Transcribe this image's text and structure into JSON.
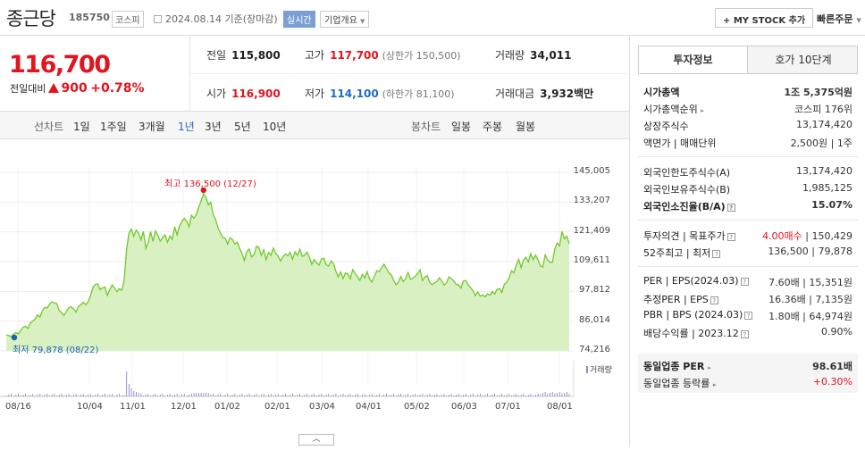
{
  "header": {
    "stock_name": "종근당",
    "stock_code": "185750",
    "market": "코스피",
    "date_text": "2024.08.14 기준(장마감)",
    "realtime": "실시간",
    "company_overview": "기업개요",
    "mystock": "+ MY STOCK 추가",
    "quick_order": "빠른주문"
  },
  "price": {
    "current": "116,700",
    "change_label": "전일대비",
    "change_amount": "900",
    "change_pct": "+0.78%"
  },
  "stats": {
    "prev_close_label": "전일",
    "prev_close": "115,800",
    "high_label": "고가",
    "high": "117,700",
    "upper_limit": "(상한가 150,500)",
    "volume_label": "거래량",
    "volume": "34,011",
    "open_label": "시가",
    "open": "116,900",
    "low_label": "저가",
    "low": "114,100",
    "lower_limit": "(하한가 81,100)",
    "amount_label": "거래대금",
    "amount": "3,932",
    "amount_unit": "백만"
  },
  "periods": {
    "line_chart_label": "선차트",
    "line_periods": [
      "1일",
      "1주일",
      "3개월",
      "1년",
      "3년",
      "5년",
      "10년"
    ],
    "active": "1년",
    "candle_label": "봉차트",
    "candle_periods": [
      "일봉",
      "주봉",
      "월봉"
    ]
  },
  "chart_data": {
    "type": "area",
    "y_ticks": [
      "145,005",
      "133,207",
      "121,409",
      "109,611",
      "97,812",
      "86,014",
      "74,216"
    ],
    "ylim": [
      74216,
      145005
    ],
    "x_ticks": [
      "08/16",
      "10/04",
      "11/01",
      "12/01",
      "01/02",
      "02/01",
      "03/04",
      "04/01",
      "05/02",
      "06/03",
      "07/01",
      "08/01"
    ],
    "high_annotation": "최고 136,500 (12/27)",
    "low_annotation": "최저 79,878 (08/22)",
    "volume_label": "거래량",
    "line_color": "#72c82c",
    "fill_color": "#d9f1c2",
    "series": [
      {
        "values": [
          80500,
          80300,
          79878,
          80800,
          81500,
          80900,
          82200,
          83600,
          84000,
          83100,
          85300,
          86000,
          86800,
          88500,
          87600,
          90100,
          91500,
          91200,
          92800,
          93700,
          93200,
          93000,
          90200,
          89400,
          88300,
          89900,
          91300,
          91700,
          90800,
          89600,
          91800,
          92600,
          93500,
          92500,
          93600,
          96000,
          99300,
          100500,
          100800,
          98500,
          99200,
          99500,
          96200,
          98400,
          100400,
          99100,
          97700,
          98900,
          98200,
          102000,
          114300,
          120800,
          122500,
          119600,
          122100,
          120900,
          118200,
          121600,
          114800,
          117000,
          121500,
          117600,
          121800,
          120100,
          117700,
          119100,
          120200,
          117300,
          119800,
          118500,
          123400,
          120200,
          123700,
          125500,
          126800,
          125600,
          123400,
          128000,
          126800,
          128200,
          131200,
          133800,
          136500,
          135100,
          132100,
          133200,
          128300,
          126400,
          123100,
          120900,
          119200,
          118800,
          116600,
          119000,
          118400,
          116600,
          117300,
          114800,
          112900,
          110100,
          113600,
          114600,
          111500,
          112300,
          115700,
          115300,
          112100,
          114300,
          110400,
          113300,
          112100,
          115000,
          112800,
          111800,
          109800,
          111500,
          112700,
          111800,
          113300,
          110600,
          113500,
          112100,
          114600,
          111700,
          112200,
          113400,
          111400,
          108500,
          110400,
          109200,
          108200,
          110600,
          111000,
          108400,
          107800,
          109900,
          108800,
          105900,
          103500,
          105500,
          102900,
          105100,
          104800,
          102800,
          106400,
          104900,
          103600,
          102200,
          104600,
          103100,
          105600,
          102800,
          101500,
          103700,
          106000,
          105600,
          107200,
          108600,
          106900,
          105200,
          104400,
          102200,
          100400,
          101500,
          103700,
          101700,
          102800,
          105300,
          102600,
          103000,
          103800,
          104900,
          106400,
          102100,
          103500,
          104100,
          101400,
          100500,
          101100,
          101700,
          103200,
          102000,
          100300,
          101200,
          103600,
          102900,
          101900,
          100600,
          100400,
          99100,
          101900,
          102100,
          100400,
          99300,
          98100,
          96100,
          97600,
          95900,
          96400,
          95600,
          96800,
          96300,
          97800,
          96700,
          98600,
          99000,
          97400,
          100600,
          101400,
          103100,
          106000,
          105200,
          108300,
          110500,
          107200,
          110200,
          111300,
          109500,
          112800,
          110400,
          112200,
          110400,
          107900,
          107400,
          112300,
          110300,
          109300,
          109400,
          114600,
          117000,
          115800,
          121600,
          118600,
          119700,
          116700
        ]
      }
    ]
  },
  "invest_panel": {
    "tabs": [
      "투자정보",
      "호가 10단계"
    ],
    "rows1": [
      {
        "k": "시가총액",
        "v": "1조 5,375억원"
      },
      {
        "k": "시가총액순위",
        "v": "코스피 176위"
      },
      {
        "k": "상장주식수",
        "v": "13,174,420"
      },
      {
        "k": "액면가 | 매매단위",
        "v": "2,500원 | 1주"
      }
    ],
    "rows2": [
      {
        "k": "외국인한도주식수(A)",
        "v": "13,174,420"
      },
      {
        "k": "외국인보유주식수(B)",
        "v": "1,985,125"
      },
      {
        "k": "외국인소진율(B/A)",
        "v": "15.07%"
      }
    ],
    "rows3": [
      {
        "k": "투자의견 | 목표주가",
        "v_red": "4.00매수",
        "v": "150,429"
      },
      {
        "k": "52주최고 | 최저",
        "v": "136,500 | 79,878"
      }
    ],
    "rows4": [
      {
        "k": "PER | EPS(2024.03)",
        "v": "7.60배 | 15,351원"
      },
      {
        "k": "추정PER | EPS",
        "v": "16.36배 | 7,135원"
      },
      {
        "k": "PBR | BPS (2024.03)",
        "v": "1.80배 | 64,974원"
      },
      {
        "k": "배당수익률 | 2023.12",
        "v": "0.90%"
      }
    ],
    "rows5": [
      {
        "k": "동일업종 PER",
        "v": "98.61배"
      },
      {
        "k": "동일업종 등락률",
        "v": "+0.30%"
      }
    ]
  }
}
